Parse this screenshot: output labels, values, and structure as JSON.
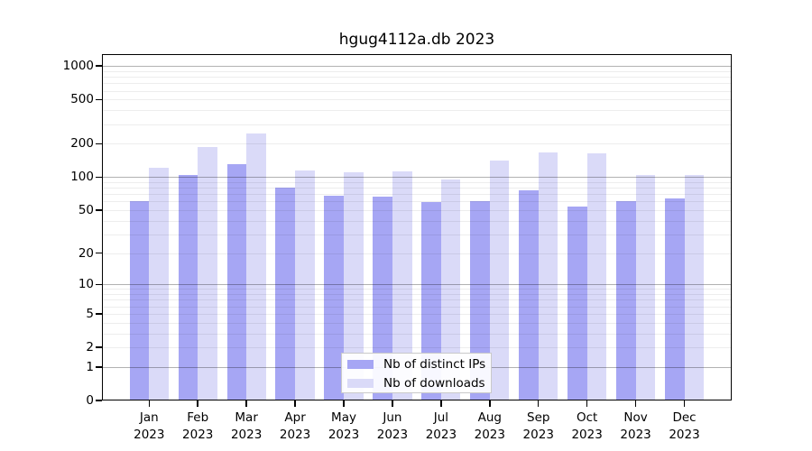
{
  "chart_data": {
    "type": "bar",
    "title": "hgug4112a.db 2023",
    "categories": [
      "Jan",
      "Feb",
      "Mar",
      "Apr",
      "May",
      "Jun",
      "Jul",
      "Aug",
      "Sep",
      "Oct",
      "Nov",
      "Dec"
    ],
    "year": "2023",
    "series": [
      {
        "name": "Nb of distinct IPs",
        "color": "#a6a6f4",
        "values": [
          60,
          105,
          131,
          80,
          68,
          67,
          59,
          60,
          76,
          54,
          60,
          64
        ]
      },
      {
        "name": "Nb of downloads",
        "color": "#dadaf8",
        "values": [
          122,
          186,
          248,
          114,
          110,
          112,
          95,
          140,
          166,
          163,
          104,
          105
        ]
      }
    ],
    "y_axis": {
      "scale": "log10(value+1)",
      "tick_values": [
        0,
        1,
        2,
        5,
        10,
        20,
        50,
        100,
        200,
        500,
        1000
      ],
      "tick_labels": [
        "0",
        "1",
        "2",
        "5",
        "10",
        "20",
        "50",
        "100",
        "200",
        "500",
        "1000"
      ],
      "ylim": [
        0,
        1000
      ]
    },
    "grid": {
      "on": true,
      "major_values": [
        1,
        10,
        100,
        1000
      ],
      "major_color": "rgba(0,0,0,0.30)",
      "minor_color": "rgba(0,0,0,0.07)"
    },
    "legend": {
      "position": "inside-bottom-center"
    }
  }
}
